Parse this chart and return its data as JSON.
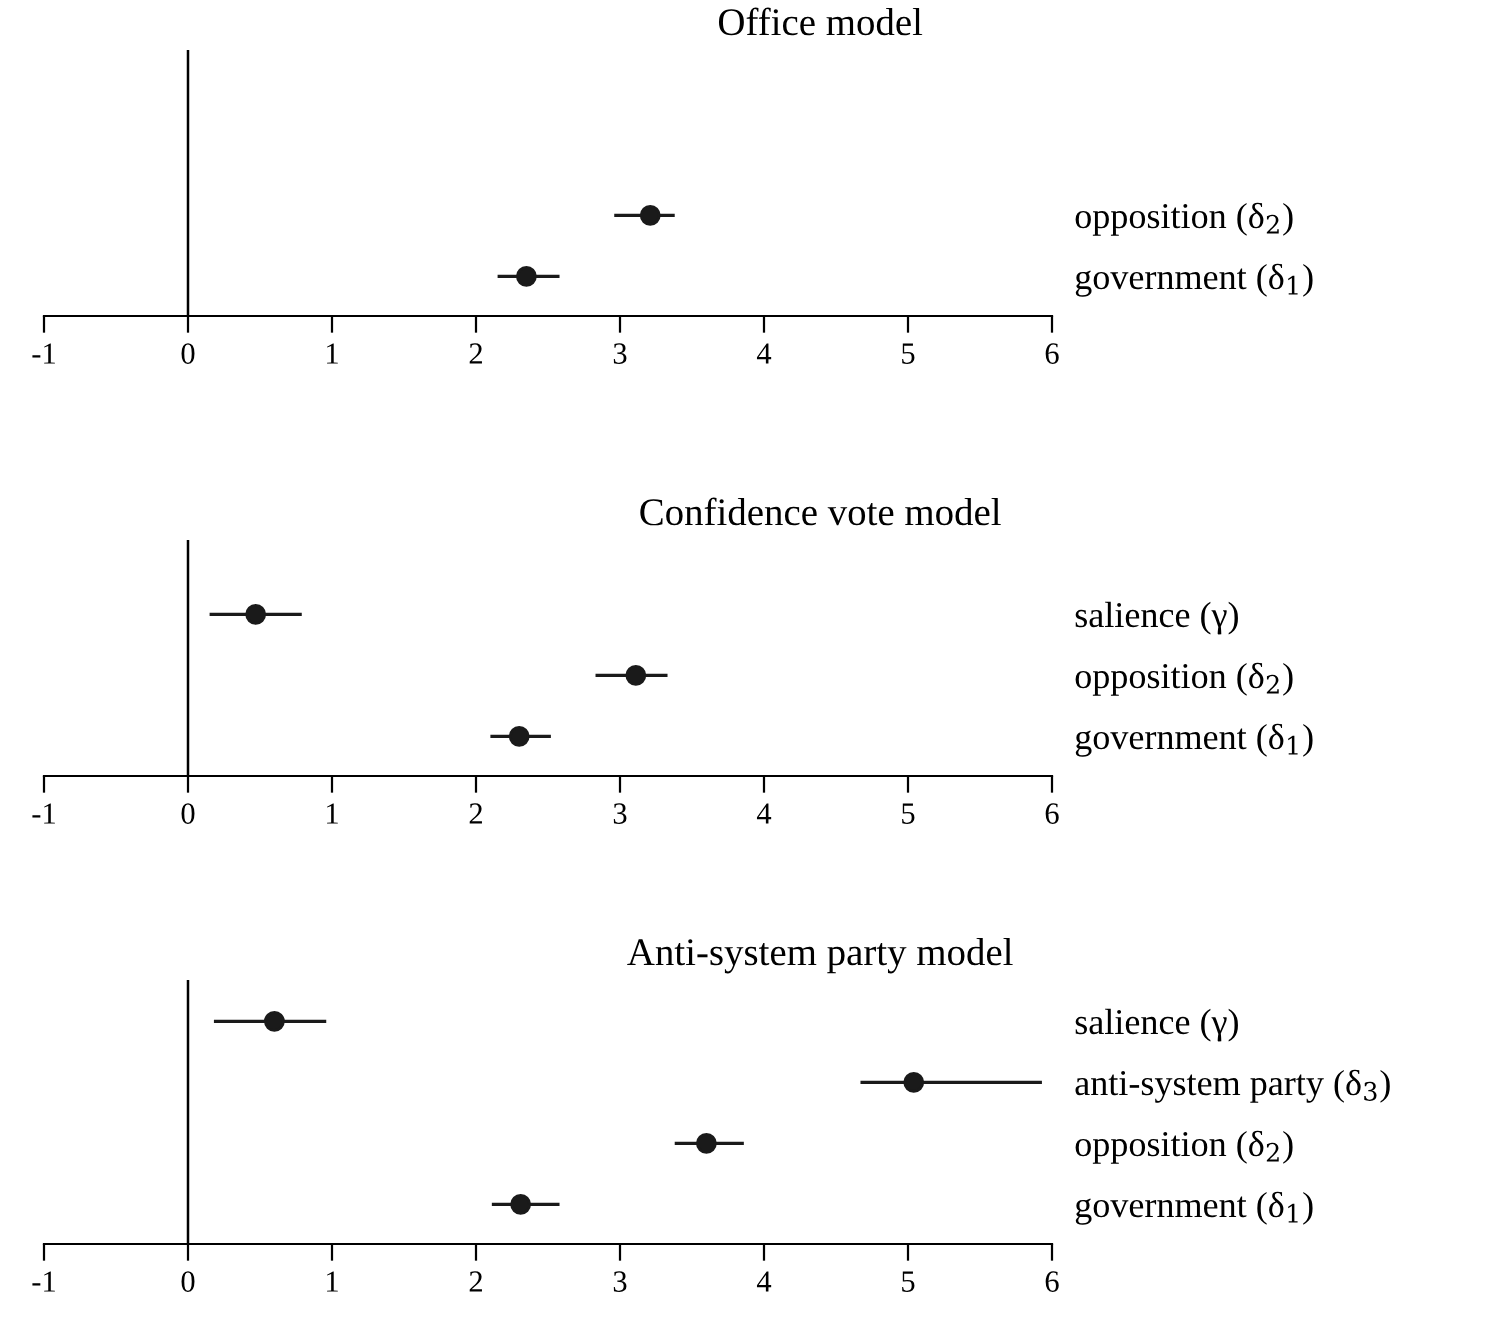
{
  "chart_data": [
    {
      "type": "scatter",
      "orientation": "horizontal",
      "title": "Office model",
      "categories": [
        "opposition (δ$_{2}$)",
        "government (δ$_{1}$)"
      ],
      "values": [
        3.21,
        2.35
      ],
      "errors": [
        [
          2.96,
          3.38
        ],
        [
          2.15,
          2.58
        ]
      ],
      "color": "#1a1a1a",
      "marker": "circle",
      "xlim": [
        -1,
        6
      ],
      "xticks": [
        -1,
        0,
        1,
        2,
        3,
        4,
        5,
        6
      ],
      "ref_lines": [
        {
          "axis": "x",
          "value": 0
        }
      ],
      "grid": false
    },
    {
      "type": "scatter",
      "orientation": "horizontal",
      "title": "Confidence vote model",
      "categories": [
        "salience (γ)",
        "opposition (δ$_{2}$)",
        "government (δ$_{1}$)"
      ],
      "values": [
        0.47,
        3.11,
        2.3
      ],
      "errors": [
        [
          0.15,
          0.79
        ],
        [
          2.83,
          3.33
        ],
        [
          2.1,
          2.52
        ]
      ],
      "color": "#1a1a1a",
      "marker": "circle",
      "xlim": [
        -1,
        6
      ],
      "xticks": [
        -1,
        0,
        1,
        2,
        3,
        4,
        5,
        6
      ],
      "ref_lines": [
        {
          "axis": "x",
          "value": 0
        }
      ],
      "grid": false
    },
    {
      "type": "scatter",
      "orientation": "horizontal",
      "title": "Anti-system party model",
      "categories": [
        "salience (γ)",
        "anti-system party (δ$_{3}$)",
        "opposition (δ$_{2}$)",
        "government (δ$_{1}$)"
      ],
      "values": [
        0.6,
        5.04,
        3.6,
        2.31
      ],
      "errors": [
        [
          0.18,
          0.96
        ],
        [
          4.67,
          5.93
        ],
        [
          3.38,
          3.86
        ],
        [
          2.11,
          2.58
        ]
      ],
      "color": "#1a1a1a",
      "marker": "circle",
      "xlim": [
        -1,
        6
      ],
      "xticks": [
        -1,
        0,
        1,
        2,
        3,
        4,
        5,
        6
      ],
      "ref_lines": [
        {
          "axis": "x",
          "value": 0
        }
      ],
      "grid": false
    }
  ]
}
